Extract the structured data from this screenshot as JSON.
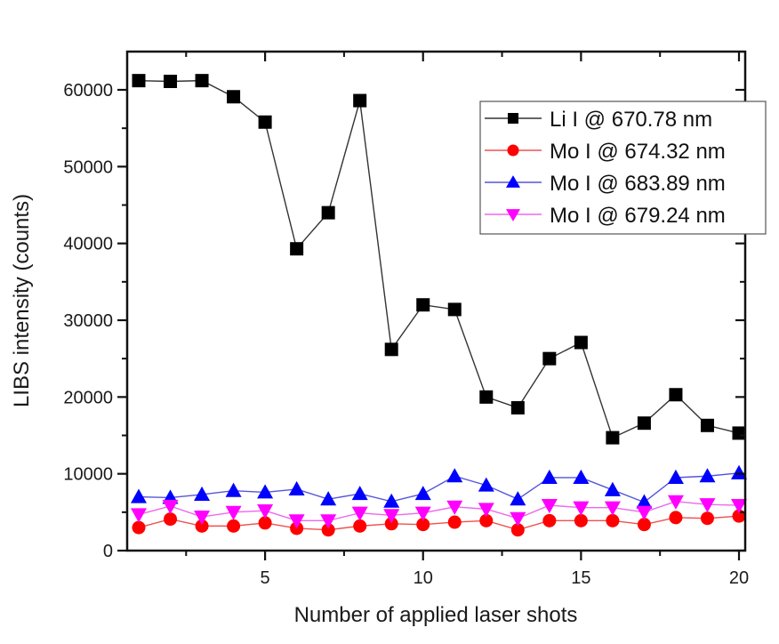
{
  "chart_data": {
    "type": "line",
    "title": "",
    "xlabel": "Number of applied laser shots",
    "ylabel": "LIBS intensity (counts)",
    "xlim": [
      0.3,
      20.9
    ],
    "ylim": [
      0,
      65000
    ],
    "xticks": [
      5,
      10,
      15,
      20
    ],
    "xtick_labels": [
      "5",
      "10",
      "15",
      "20"
    ],
    "xminor": [
      2.5,
      7.5,
      12.5,
      17.5
    ],
    "yticks": [
      0,
      10000,
      20000,
      30000,
      40000,
      50000,
      60000
    ],
    "ytick_labels": [
      "0",
      "10000",
      "20000",
      "30000",
      "40000",
      "50000",
      "60000"
    ],
    "yminor": [
      5000,
      15000,
      25000,
      35000,
      45000,
      55000
    ],
    "grid": false,
    "legend_position": "top-right",
    "x": [
      1,
      2,
      3,
      4,
      5,
      6,
      7,
      8,
      9,
      10,
      11,
      12,
      13,
      14,
      15,
      16,
      17,
      18,
      19,
      20
    ],
    "series": [
      {
        "name": "Li I @ 670.78 nm",
        "color": "#000000",
        "line_color": "#333333",
        "marker": "square",
        "values": [
          61200,
          61100,
          61200,
          59100,
          55800,
          39300,
          44000,
          58600,
          26200,
          32000,
          31400,
          20000,
          18600,
          25000,
          27100,
          14700,
          16600,
          20300,
          16300,
          15300
        ]
      },
      {
        "name": "Mo I @ 674.32 nm",
        "color": "#ff0000",
        "line_color": "#f05050",
        "marker": "circle",
        "values": [
          3000,
          4100,
          3200,
          3200,
          3600,
          2900,
          2700,
          3200,
          3500,
          3400,
          3700,
          3900,
          2700,
          3900,
          3900,
          3900,
          3400,
          4300,
          4200,
          4500
        ]
      },
      {
        "name": "Mo I @ 683.89 nm",
        "color": "#0000ff",
        "line_color": "#5555dd",
        "marker": "triangle-up",
        "values": [
          7000,
          6900,
          7300,
          7800,
          7600,
          8000,
          6700,
          7400,
          6400,
          7400,
          9700,
          8500,
          6700,
          9500,
          9500,
          7900,
          6300,
          9500,
          9700,
          10100
        ]
      },
      {
        "name": "Mo I @ 679.24 nm",
        "color": "#ff00ff",
        "line_color": "#ee66ee",
        "marker": "triangle-down",
        "values": [
          4700,
          5800,
          4400,
          5000,
          5200,
          3900,
          3900,
          4900,
          4600,
          4900,
          5700,
          5400,
          4200,
          5900,
          5600,
          5600,
          5000,
          6400,
          6000,
          5900
        ]
      }
    ]
  }
}
